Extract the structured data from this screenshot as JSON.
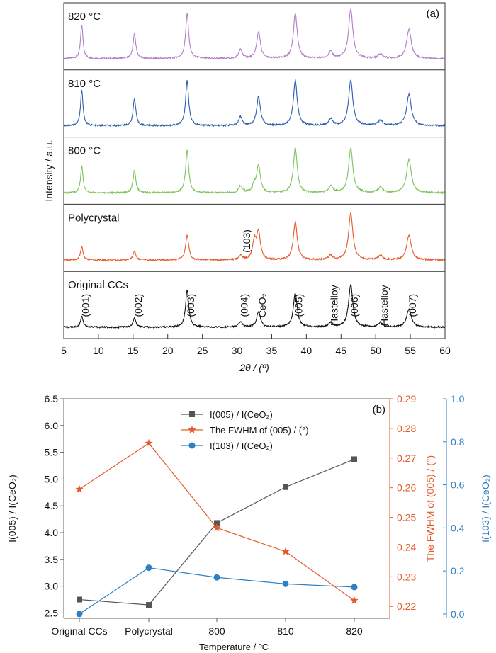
{
  "chart_data": [
    {
      "type": "line",
      "panel_label": "(a)",
      "xlabel": "2θ / (º)",
      "ylabel": "Intensity / a.u.",
      "xlim": [
        5,
        60
      ],
      "x_ticks": [
        5,
        10,
        15,
        20,
        25,
        30,
        35,
        40,
        45,
        50,
        55,
        60
      ],
      "stack": [
        {
          "name": "820 °C",
          "color": "#b07cc6",
          "peaks": [
            {
              "x": 7.6,
              "h": 0.75
            },
            {
              "x": 15.2,
              "h": 0.55
            },
            {
              "x": 22.8,
              "h": 1.0
            },
            {
              "x": 30.5,
              "h": 0.2
            },
            {
              "x": 33.1,
              "h": 0.6
            },
            {
              "x": 38.4,
              "h": 1.0
            },
            {
              "x": 43.5,
              "h": 0.15
            },
            {
              "x": 46.4,
              "h": 1.1
            },
            {
              "x": 50.7,
              "h": 0.1
            },
            {
              "x": 54.8,
              "h": 0.65
            }
          ]
        },
        {
          "name": "810 °C",
          "color": "#2a5ea8",
          "peaks": [
            {
              "x": 7.6,
              "h": 0.8
            },
            {
              "x": 15.2,
              "h": 0.6
            },
            {
              "x": 22.8,
              "h": 1.0
            },
            {
              "x": 30.5,
              "h": 0.2
            },
            {
              "x": 33.1,
              "h": 0.65
            },
            {
              "x": 38.4,
              "h": 1.0
            },
            {
              "x": 43.5,
              "h": 0.15
            },
            {
              "x": 46.4,
              "h": 1.0
            },
            {
              "x": 50.7,
              "h": 0.12
            },
            {
              "x": 54.8,
              "h": 0.7
            }
          ]
        },
        {
          "name": "800 °C",
          "color": "#7cc35a",
          "peaks": [
            {
              "x": 7.6,
              "h": 0.6
            },
            {
              "x": 15.2,
              "h": 0.5
            },
            {
              "x": 22.8,
              "h": 0.95
            },
            {
              "x": 30.5,
              "h": 0.15
            },
            {
              "x": 32.5,
              "h": 0.15
            },
            {
              "x": 33.1,
              "h": 0.6
            },
            {
              "x": 38.4,
              "h": 1.0
            },
            {
              "x": 43.5,
              "h": 0.15
            },
            {
              "x": 46.4,
              "h": 1.0
            },
            {
              "x": 50.7,
              "h": 0.12
            },
            {
              "x": 54.8,
              "h": 0.75
            }
          ]
        },
        {
          "name": "Polycrystal",
          "color": "#e55a2b",
          "peaks": [
            {
              "x": 7.6,
              "h": 0.3
            },
            {
              "x": 15.2,
              "h": 0.2
            },
            {
              "x": 22.8,
              "h": 0.55
            },
            {
              "x": 30.5,
              "h": 0.1
            },
            {
              "x": 32.5,
              "h": 0.4
            },
            {
              "x": 33.1,
              "h": 0.6
            },
            {
              "x": 38.4,
              "h": 0.85
            },
            {
              "x": 43.5,
              "h": 0.1
            },
            {
              "x": 46.4,
              "h": 1.05
            },
            {
              "x": 50.7,
              "h": 0.1
            },
            {
              "x": 54.8,
              "h": 0.55
            }
          ]
        },
        {
          "name": "Original CCs",
          "color": "#111111",
          "peaks": [
            {
              "x": 7.6,
              "h": 0.25
            },
            {
              "x": 15.2,
              "h": 0.2
            },
            {
              "x": 22.8,
              "h": 0.85
            },
            {
              "x": 30.5,
              "h": 0.12
            },
            {
              "x": 33.1,
              "h": 0.35
            },
            {
              "x": 38.4,
              "h": 0.75
            },
            {
              "x": 43.5,
              "h": 0.1
            },
            {
              "x": 46.4,
              "h": 0.95
            },
            {
              "x": 50.7,
              "h": 0.1
            },
            {
              "x": 54.8,
              "h": 0.4
            }
          ]
        }
      ],
      "annotations": [
        {
          "text": "(001)",
          "x": 7.6
        },
        {
          "text": "(002)",
          "x": 15.2
        },
        {
          "text": "(003)",
          "x": 22.8
        },
        {
          "text": "(004)",
          "x": 30.5
        },
        {
          "text": "CeO₂",
          "x": 33.1
        },
        {
          "text": "(005)",
          "x": 38.4
        },
        {
          "text": "Hastelloy",
          "x": 43.5
        },
        {
          "text": "(006)",
          "x": 46.4
        },
        {
          "text": "Hastelloy",
          "x": 50.7
        },
        {
          "text": "(007)",
          "x": 54.8
        },
        {
          "text": "(103)",
          "x": 32.5,
          "panel": "Polycrystal"
        }
      ]
    },
    {
      "type": "line",
      "panel_label": "(b)",
      "xlabel": "Temperature / ºC",
      "categories": [
        "Original CCs",
        "Polycrystal",
        "800",
        "810",
        "820"
      ],
      "y_left": {
        "label": "I(005) / I(CeO₂)",
        "lim": [
          2.4,
          6.5
        ],
        "ticks": [
          2.5,
          3.0,
          3.5,
          4.0,
          4.5,
          5.0,
          5.5,
          6.0,
          6.5
        ]
      },
      "y_right1": {
        "label": "The FWHM of (005) / (°)",
        "lim": [
          0.216,
          0.29
        ],
        "ticks": [
          0.22,
          0.23,
          0.24,
          0.25,
          0.26,
          0.27,
          0.28,
          0.29
        ],
        "color": "#e55a2b"
      },
      "y_right2": {
        "label": "I(103) / I(CeO₂)",
        "lim": [
          -0.02,
          1.0
        ],
        "ticks": [
          0.0,
          0.2,
          0.4,
          0.6,
          0.8,
          1.0
        ],
        "color": "#2f7fc1"
      },
      "series": [
        {
          "name": "I(005) / I(CeO₂)",
          "axis": "left",
          "marker": "square",
          "color": "#555555",
          "values": [
            2.75,
            2.65,
            4.18,
            4.85,
            5.37
          ]
        },
        {
          "name": "The FWHM of (005) / (°)",
          "axis": "right1",
          "marker": "star",
          "color": "#e55a2b",
          "values": [
            0.2595,
            0.275,
            0.2465,
            0.2385,
            0.222
          ]
        },
        {
          "name": "I(103) / I(CeO₂)",
          "axis": "right2",
          "marker": "circle",
          "color": "#2f7fc1",
          "values": [
            0.0,
            0.215,
            0.17,
            0.14,
            0.125
          ]
        }
      ]
    }
  ]
}
